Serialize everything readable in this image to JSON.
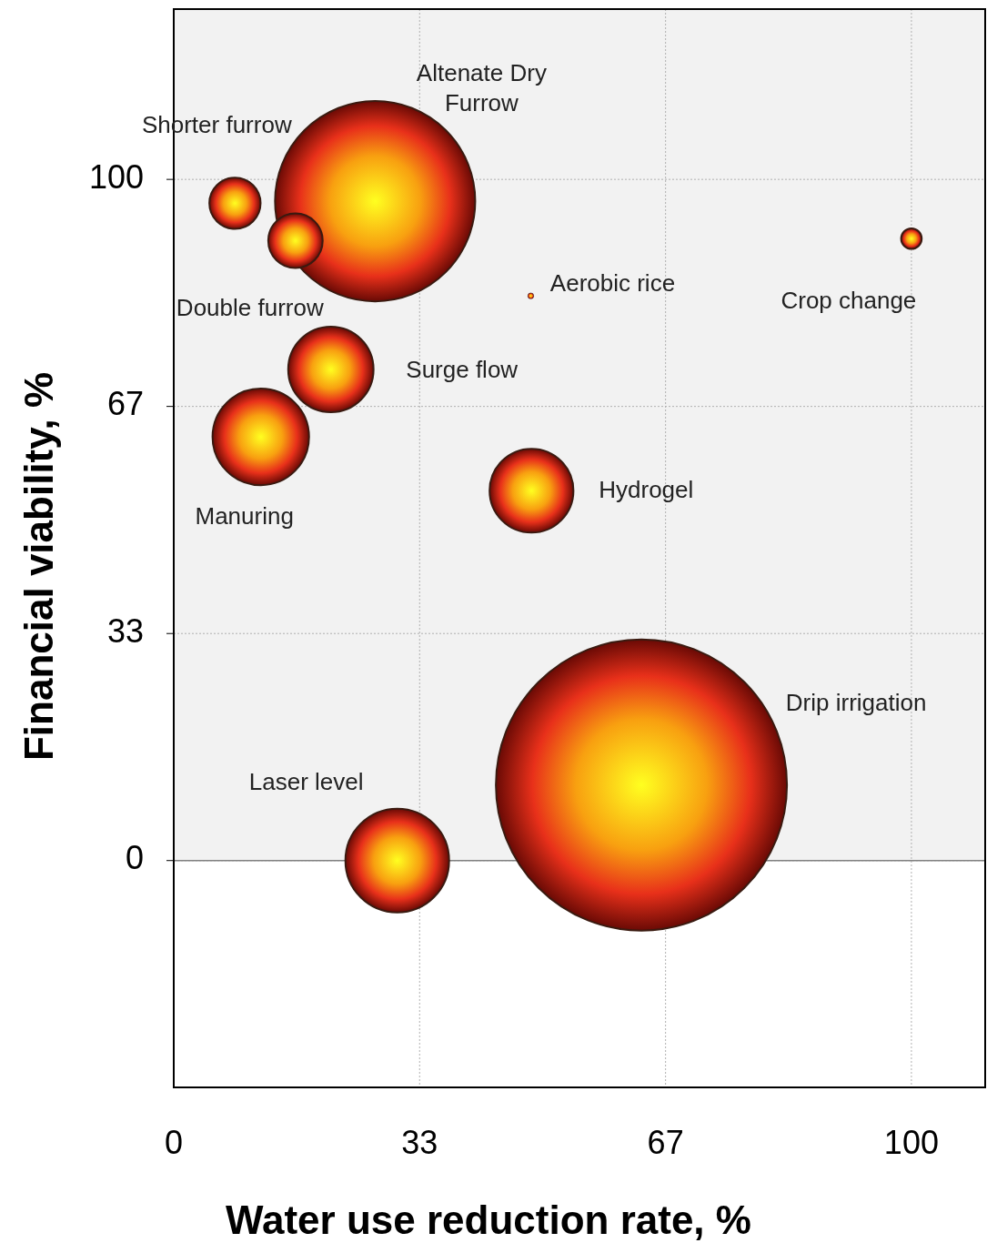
{
  "chart_data": {
    "type": "bubble",
    "xlabel": "Water use reduction rate, %",
    "ylabel": "Financial viability, %",
    "xlim": [
      0,
      110
    ],
    "xticks": [
      0,
      {
        "value": 33.33,
        "label": "33"
      },
      {
        "value": 66.67,
        "label": "67"
      },
      100
    ],
    "ylim": [
      -33.3,
      125
    ],
    "yticks": [
      0,
      {
        "value": 33.33,
        "label": "33"
      },
      {
        "value": 66.67,
        "label": "67"
      },
      100
    ],
    "grid": true,
    "bands": [
      {
        "axis": "y",
        "from": 0,
        "to": 125,
        "color": "#f2f2f2"
      }
    ],
    "ref_lines": [
      {
        "axis": "y",
        "value": 0,
        "color": "#808080"
      }
    ],
    "series": [
      {
        "color": "#3a1a10",
        "x": [
          8.3,
          16.5,
          27.3,
          48.4,
          100,
          21.3,
          11.8,
          48.5,
          63.4,
          30.3
        ],
        "values": [
          96.5,
          91,
          96.8,
          82.9,
          91.3,
          72.1,
          62.2,
          54.3,
          11.1,
          0
        ],
        "sizes": [
          0.031,
          0.035,
          0.473,
          0.0004,
          0.005,
          0.086,
          0.11,
          0.083,
          1,
          0.127
        ]
      }
    ],
    "annotations": [
      "Shorter furrow",
      "Double furrow",
      "Altenate Dry\nFurrow",
      "Aerobic rice",
      "Crop change",
      "Surge flow",
      "Manuring",
      "Hydrogel",
      "Drip irrigation",
      "Laser level"
    ]
  }
}
